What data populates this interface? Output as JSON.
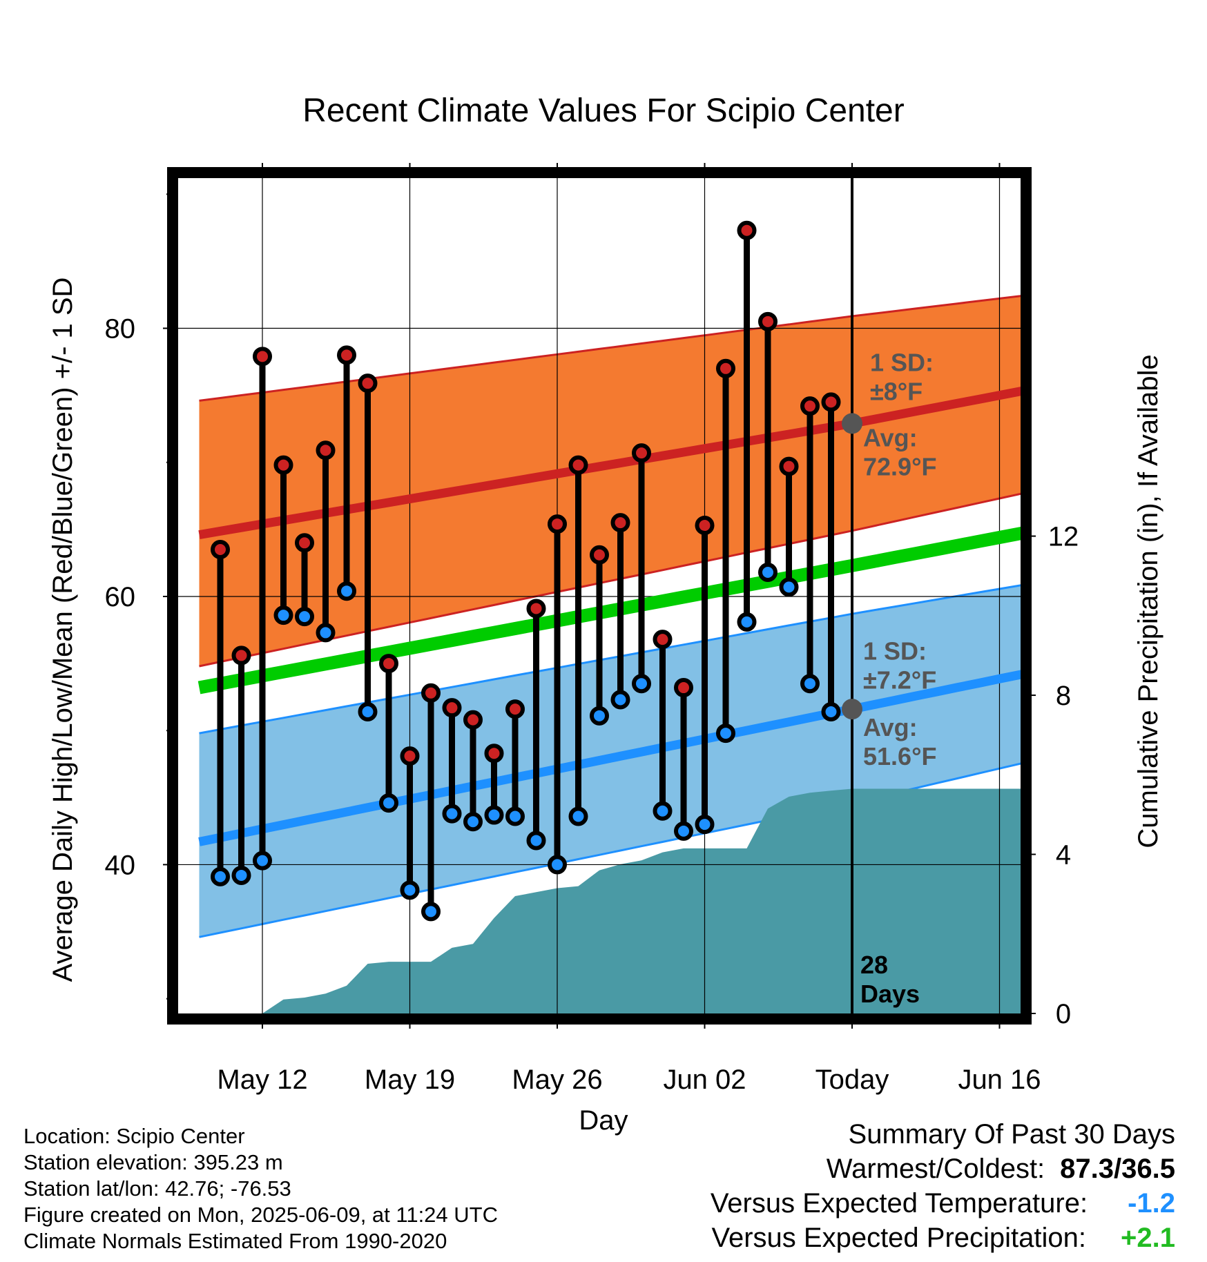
{
  "chart_data": {
    "type": "line",
    "title": "Recent Climate Values For Scipio Center",
    "xlabel": "Day",
    "ylabel": "Average Daily High/Low/Mean (Red/Blue/Green) +/- 1 SD",
    "y2label": "Cumulative Precipitation (in), If Available",
    "x_tick_labels": [
      "May 12",
      "May 19",
      "May 26",
      "Jun 02",
      "Today",
      "Jun 16"
    ],
    "x_ticks": [
      "2025-05-12",
      "2025-05-19",
      "2025-05-26",
      "2025-06-02",
      "2025-06-09",
      "2025-06-16"
    ],
    "xlim": [
      "2025-05-08",
      "2025-06-17"
    ],
    "y_tick_labels": [
      "40",
      "60",
      "80"
    ],
    "ylim": [
      28.9,
      91.2
    ],
    "y2_tick_labels": [
      "0",
      "4",
      "8",
      "12"
    ],
    "y2lim": [
      0,
      21
    ],
    "grid": true,
    "normal_high": {
      "label": "Avg: 72.9°F",
      "sd_label": "1 SD: ±8°F",
      "x": [
        "2025-05-09",
        "2025-06-09",
        "2025-06-18"
      ],
      "mean": [
        64.6,
        72.9,
        75.6
      ],
      "upper": [
        74.6,
        80.9,
        82.6
      ],
      "lower": [
        54.8,
        64.9,
        68.0
      ],
      "color": "#cc2222",
      "band_color": "#f47a30"
    },
    "normal_mean": {
      "x": [
        "2025-05-09",
        "2025-06-09",
        "2025-06-18"
      ],
      "values": [
        53.2,
        62.3,
        65.0
      ],
      "color": "#00cc00"
    },
    "normal_low": {
      "label": "Avg: 51.6°F",
      "sd_label": "1 SD: ±7.2°F",
      "x": [
        "2025-05-09",
        "2025-06-09",
        "2025-06-18"
      ],
      "mean": [
        41.7,
        51.6,
        54.5
      ],
      "upper": [
        49.8,
        58.7,
        61.1
      ],
      "lower": [
        34.6,
        44.6,
        47.9
      ],
      "color": "#1e90ff",
      "band_color": "#82c0e6"
    },
    "series": [
      {
        "name": "High",
        "color": "#cc2222",
        "x": [
          "2025-05-10",
          "2025-05-11",
          "2025-05-12",
          "2025-05-13",
          "2025-05-14",
          "2025-05-15",
          "2025-05-16",
          "2025-05-17",
          "2025-05-18",
          "2025-05-19",
          "2025-05-20",
          "2025-05-21",
          "2025-05-22",
          "2025-05-23",
          "2025-05-24",
          "2025-05-25",
          "2025-05-26",
          "2025-05-27",
          "2025-05-28",
          "2025-05-29",
          "2025-05-30",
          "2025-05-31",
          "2025-06-01",
          "2025-06-02",
          "2025-06-03",
          "2025-06-04",
          "2025-06-05",
          "2025-06-06",
          "2025-06-07",
          "2025-06-08"
        ],
        "values": [
          63.5,
          55.6,
          77.9,
          69.8,
          64.0,
          70.9,
          78.0,
          75.9,
          55.0,
          48.1,
          52.8,
          51.7,
          50.8,
          48.3,
          51.6,
          59.1,
          65.4,
          69.8,
          63.1,
          65.5,
          70.7,
          56.8,
          53.2,
          65.3,
          77.0,
          87.3,
          80.5,
          69.7,
          74.2,
          74.5
        ]
      },
      {
        "name": "Low",
        "color": "#1e90ff",
        "x": [
          "2025-05-10",
          "2025-05-11",
          "2025-05-12",
          "2025-05-13",
          "2025-05-14",
          "2025-05-15",
          "2025-05-16",
          "2025-05-17",
          "2025-05-18",
          "2025-05-19",
          "2025-05-20",
          "2025-05-21",
          "2025-05-22",
          "2025-05-23",
          "2025-05-24",
          "2025-05-25",
          "2025-05-26",
          "2025-05-27",
          "2025-05-28",
          "2025-05-29",
          "2025-05-30",
          "2025-05-31",
          "2025-06-01",
          "2025-06-02",
          "2025-06-03",
          "2025-06-04",
          "2025-06-05",
          "2025-06-06",
          "2025-06-07",
          "2025-06-08"
        ],
        "values": [
          39.1,
          39.2,
          40.3,
          58.6,
          58.5,
          57.3,
          60.4,
          51.4,
          44.6,
          38.1,
          36.5,
          43.8,
          43.2,
          43.7,
          43.6,
          41.8,
          40.0,
          43.6,
          51.1,
          52.3,
          53.5,
          44.0,
          42.5,
          43.0,
          49.8,
          58.1,
          61.8,
          60.7,
          53.5,
          51.4
        ]
      },
      {
        "name": "Cumulative Precipitation",
        "axis": "right",
        "type": "area",
        "color": "#4a9aa5",
        "x": [
          "2025-05-12",
          "2025-05-13",
          "2025-05-14",
          "2025-05-15",
          "2025-05-16",
          "2025-05-17",
          "2025-05-18",
          "2025-05-19",
          "2025-05-20",
          "2025-05-21",
          "2025-05-22",
          "2025-05-23",
          "2025-05-24",
          "2025-05-25",
          "2025-05-26",
          "2025-05-27",
          "2025-05-28",
          "2025-05-29",
          "2025-05-30",
          "2025-05-31",
          "2025-06-01",
          "2025-06-02",
          "2025-06-03",
          "2025-06-04",
          "2025-06-05",
          "2025-06-06",
          "2025-06-07",
          "2025-06-08",
          "2025-06-09",
          "2025-06-18"
        ],
        "values": [
          0.0,
          0.35,
          0.4,
          0.5,
          0.7,
          1.25,
          1.3,
          1.3,
          1.3,
          1.65,
          1.75,
          2.4,
          2.95,
          3.05,
          3.15,
          3.2,
          3.6,
          3.75,
          3.85,
          4.05,
          4.15,
          4.15,
          4.15,
          4.15,
          5.15,
          5.45,
          5.55,
          5.6,
          5.65,
          5.65
        ]
      }
    ],
    "today": "2025-06-09",
    "period_label": "28\nDays"
  },
  "info": {
    "location": "Location: Scipio Center",
    "elevation": "Station elevation: 395.23 m",
    "latlon": "Station lat/lon: 42.76; -76.53",
    "created": "Figure created on Mon, 2025-06-09, at 11:24 UTC",
    "normals": "Climate Normals Estimated From 1990-2020"
  },
  "summary": {
    "title": "Summary Of Past 30 Days",
    "warmest_label": "Warmest/Coldest:",
    "warmest_value": "87.3/36.5",
    "temp_label": "Versus Expected Temperature:",
    "temp_value": "-1.2",
    "temp_color": "#1e90ff",
    "precip_label": "Versus Expected Precipitation:",
    "precip_value": "+2.1",
    "precip_color": "#22bb22"
  }
}
